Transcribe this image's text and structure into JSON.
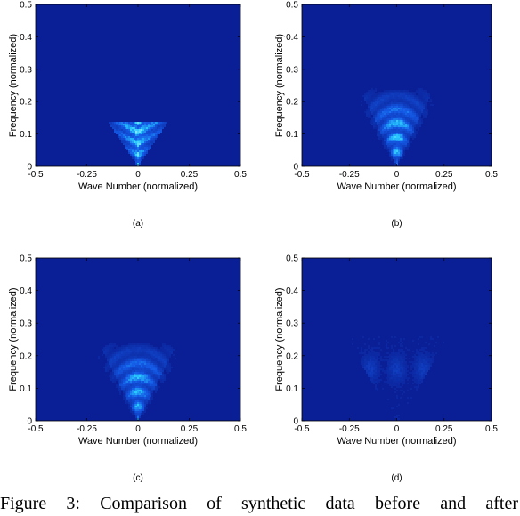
{
  "caption": "Figure 3:   Comparison of synthetic data before and after",
  "chart_data": [
    {
      "type": "heatmap",
      "panel_label": "(a)",
      "xlabel": "Wave Number (normalized)",
      "ylabel": "Frequency (normalized)",
      "xlim": [
        -0.5,
        0.5
      ],
      "ylim": [
        0,
        0.5
      ],
      "xticks": [
        "-0.5",
        "-0.25",
        "0",
        "0.25",
        "0.5"
      ],
      "yticks": [
        "0",
        "0.1",
        "0.2",
        "0.3",
        "0.4",
        "0.5"
      ],
      "background_color": "#0a1f96",
      "energy": {
        "shape": "cone",
        "apex": [
          0.0,
          0.0
        ],
        "half_width_at_top": 0.15,
        "fmax": 0.14,
        "hard_cutoff": true,
        "peak_intensity": 1.0
      }
    },
    {
      "type": "heatmap",
      "panel_label": "(b)",
      "xlabel": "Wave Number (normalized)",
      "ylabel": "Frequency (normalized)",
      "xlim": [
        -0.5,
        0.5
      ],
      "ylim": [
        0,
        0.5
      ],
      "xticks": [
        "-0.5",
        "-0.25",
        "0",
        "0.25",
        "0.5"
      ],
      "yticks": [
        "0",
        "0.1",
        "0.2",
        "0.3",
        "0.4",
        "0.5"
      ],
      "background_color": "#0a1f96",
      "energy": {
        "shape": "cone",
        "apex": [
          0.0,
          0.0
        ],
        "half_width_at_top": 0.23,
        "fmax": 0.24,
        "hard_cutoff": false,
        "peak_intensity": 0.85
      }
    },
    {
      "type": "heatmap",
      "panel_label": "(c)",
      "xlabel": "Wave Number (normalized)",
      "ylabel": "Frequency (normalized)",
      "xlim": [
        -0.5,
        0.5
      ],
      "ylim": [
        0,
        0.5
      ],
      "xticks": [
        "-0.5",
        "-0.25",
        "0",
        "0.25",
        "0.5"
      ],
      "yticks": [
        "0",
        "0.1",
        "0.2",
        "0.3",
        "0.4",
        "0.5"
      ],
      "background_color": "#0a1f96",
      "energy": {
        "shape": "cone",
        "apex": [
          0.0,
          0.0
        ],
        "half_width_at_top": 0.23,
        "fmax": 0.24,
        "hard_cutoff": false,
        "peak_intensity": 0.8
      }
    },
    {
      "type": "heatmap",
      "panel_label": "(d)",
      "xlabel": "Wave Number (normalized)",
      "ylabel": "Frequency (normalized)",
      "xlim": [
        -0.5,
        0.5
      ],
      "ylim": [
        0,
        0.5
      ],
      "xticks": [
        "-0.5",
        "-0.25",
        "0",
        "0.25",
        "0.5"
      ],
      "yticks": [
        "0",
        "0.1",
        "0.2",
        "0.3",
        "0.4",
        "0.5"
      ],
      "background_color": "#0a1f96",
      "energy": {
        "shape": "residual",
        "apex": [
          0.0,
          0.0
        ],
        "half_width_at_top": 0.23,
        "fmax": 0.24,
        "hard_cutoff": false,
        "peak_intensity": 0.25
      }
    }
  ]
}
